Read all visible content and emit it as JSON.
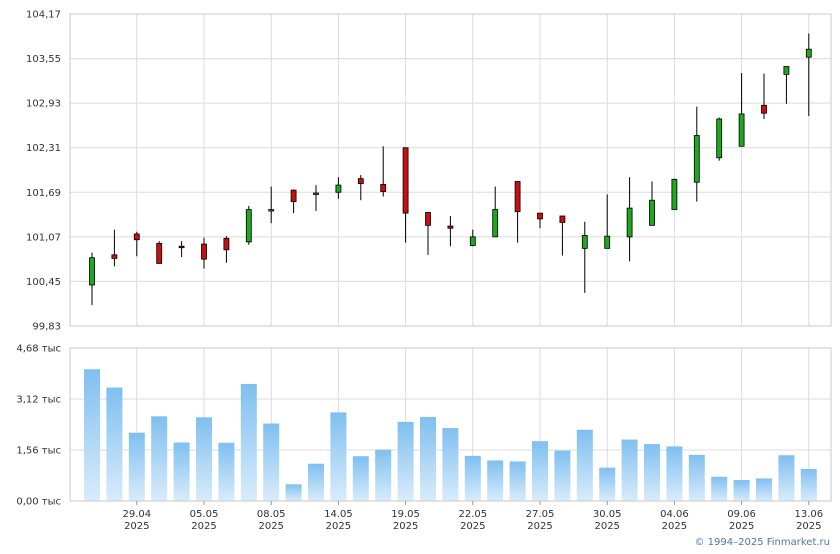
{
  "chart_data": [
    {
      "type": "candlestick",
      "y_ticks": [
        "104,17",
        "103,55",
        "102,93",
        "102,31",
        "101,69",
        "101,07",
        "100,45",
        "99,83"
      ],
      "ylim": [
        99.83,
        104.17
      ],
      "x_labels": [
        {
          "day": "29.04",
          "year": "2025"
        },
        {
          "day": "05.05",
          "year": "2025"
        },
        {
          "day": "08.05",
          "year": "2025"
        },
        {
          "day": "14.05",
          "year": "2025"
        },
        {
          "day": "19.05",
          "year": "2025"
        },
        {
          "day": "22.05",
          "year": "2025"
        },
        {
          "day": "27.05",
          "year": "2025"
        },
        {
          "day": "30.05",
          "year": "2025"
        },
        {
          "day": "04.06",
          "year": "2025"
        },
        {
          "day": "09.06",
          "year": "2025"
        },
        {
          "day": "13.06",
          "year": "2025"
        }
      ],
      "x_label_index": [
        2,
        5,
        8,
        11,
        14,
        17,
        20,
        23,
        26,
        29,
        32
      ],
      "candles": [
        {
          "o": 100.4,
          "h": 100.85,
          "l": 100.12,
          "c": 100.78
        },
        {
          "o": 100.82,
          "h": 101.17,
          "l": 100.66,
          "c": 100.77
        },
        {
          "o": 101.11,
          "h": 101.14,
          "l": 100.8,
          "c": 101.03
        },
        {
          "o": 100.98,
          "h": 101.01,
          "l": 100.71,
          "c": 100.7
        },
        {
          "o": 100.94,
          "h": 101.01,
          "l": 100.79,
          "c": 100.92
        },
        {
          "o": 100.97,
          "h": 101.06,
          "l": 100.63,
          "c": 100.76
        },
        {
          "o": 101.05,
          "h": 101.08,
          "l": 100.71,
          "c": 100.89
        },
        {
          "o": 101.0,
          "h": 101.5,
          "l": 100.96,
          "c": 101.45
        },
        {
          "o": 101.45,
          "h": 101.77,
          "l": 101.26,
          "c": 101.45
        },
        {
          "o": 101.72,
          "h": 101.73,
          "l": 101.4,
          "c": 101.56
        },
        {
          "o": 101.68,
          "h": 101.79,
          "l": 101.43,
          "c": 101.68
        },
        {
          "o": 101.69,
          "h": 101.9,
          "l": 101.6,
          "c": 101.79
        },
        {
          "o": 101.88,
          "h": 101.93,
          "l": 101.58,
          "c": 101.81
        },
        {
          "o": 101.8,
          "h": 102.33,
          "l": 101.63,
          "c": 101.7
        },
        {
          "o": 102.31,
          "h": 102.31,
          "l": 100.99,
          "c": 101.4
        },
        {
          "o": 101.41,
          "h": 101.41,
          "l": 100.82,
          "c": 101.23
        },
        {
          "o": 101.22,
          "h": 101.36,
          "l": 100.94,
          "c": 101.19
        },
        {
          "o": 100.95,
          "h": 101.17,
          "l": 100.94,
          "c": 101.07
        },
        {
          "o": 101.07,
          "h": 101.77,
          "l": 101.07,
          "c": 101.45
        },
        {
          "o": 101.84,
          "h": 101.84,
          "l": 100.99,
          "c": 101.42
        },
        {
          "o": 101.4,
          "h": 101.4,
          "l": 101.19,
          "c": 101.32
        },
        {
          "o": 101.36,
          "h": 101.36,
          "l": 100.81,
          "c": 101.27
        },
        {
          "o": 100.91,
          "h": 101.28,
          "l": 100.29,
          "c": 101.09
        },
        {
          "o": 100.91,
          "h": 101.66,
          "l": 100.91,
          "c": 101.08
        },
        {
          "o": 101.07,
          "h": 101.9,
          "l": 100.73,
          "c": 101.47
        },
        {
          "o": 101.23,
          "h": 101.84,
          "l": 101.23,
          "c": 101.58
        },
        {
          "o": 101.45,
          "h": 101.88,
          "l": 101.45,
          "c": 101.87
        },
        {
          "o": 101.83,
          "h": 102.88,
          "l": 101.56,
          "c": 102.48
        },
        {
          "o": 102.17,
          "h": 102.73,
          "l": 102.13,
          "c": 102.71
        },
        {
          "o": 102.33,
          "h": 103.35,
          "l": 102.33,
          "c": 102.78
        },
        {
          "o": 102.9,
          "h": 103.34,
          "l": 102.71,
          "c": 102.79
        },
        {
          "o": 103.33,
          "h": 103.44,
          "l": 102.92,
          "c": 103.44
        },
        {
          "o": 103.57,
          "h": 103.9,
          "l": 102.75,
          "c": 103.68
        }
      ]
    },
    {
      "type": "bar",
      "y_ticks": [
        "4,68 тыс",
        "3,12 тыс",
        "1,56 тыс",
        "0,00 тыс"
      ],
      "ylim": [
        0,
        4.68
      ],
      "values": [
        4.03,
        3.47,
        2.09,
        2.59,
        1.79,
        2.56,
        1.78,
        3.58,
        2.37,
        0.51,
        1.14,
        2.71,
        1.37,
        1.57,
        2.42,
        2.57,
        2.23,
        1.38,
        1.24,
        1.21,
        1.83,
        1.54,
        2.18,
        1.02,
        1.88,
        1.74,
        1.67,
        1.41,
        0.74,
        0.64,
        0.69,
        1.4,
        0.98
      ]
    }
  ],
  "copyright": "© 1994–2025 Finmarket.ru"
}
